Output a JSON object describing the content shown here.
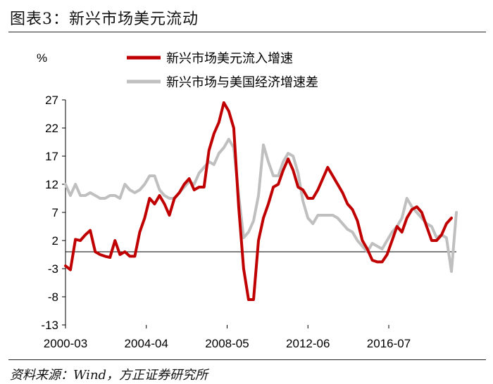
{
  "figure_title": "图表3：新兴市场美元流动",
  "source_note": "资料来源：Wind，方正证券研究所",
  "colors": {
    "red": "#c00000",
    "gray": "#bfbfbf",
    "axis": "#000000"
  },
  "chart_data": {
    "type": "line",
    "ylabel": "%",
    "ylim": [
      -13,
      27
    ],
    "yticks": [
      "27",
      "22",
      "17",
      "12",
      "7",
      "2",
      "-3",
      "-8",
      "-13"
    ],
    "xlim": [
      "2000-03",
      "2019-12"
    ],
    "xticks": [
      "2000-03",
      "2004-04",
      "2008-05",
      "2012-06",
      "2016-07"
    ],
    "legend_position": "top-center",
    "series": [
      {
        "name": "新兴市场美元流入增速",
        "color": "#c00000",
        "points": [
          [
            "2000-03",
            -2.5
          ],
          [
            "2000-06",
            -3.2
          ],
          [
            "2000-09",
            2.2
          ],
          [
            "2000-12",
            2.0
          ],
          [
            "2001-03",
            3.0
          ],
          [
            "2001-06",
            3.8
          ],
          [
            "2001-09",
            0.0
          ],
          [
            "2001-12",
            -0.5
          ],
          [
            "2002-03",
            -0.8
          ],
          [
            "2002-06",
            -1.0
          ],
          [
            "2002-09",
            2.0
          ],
          [
            "2002-12",
            -0.5
          ],
          [
            "2003-03",
            0.0
          ],
          [
            "2003-06",
            -0.8
          ],
          [
            "2003-09",
            -0.8
          ],
          [
            "2003-12",
            3.5
          ],
          [
            "2004-03",
            6.0
          ],
          [
            "2004-06",
            9.5
          ],
          [
            "2004-09",
            8.5
          ],
          [
            "2004-12",
            10.0
          ],
          [
            "2005-03",
            8.5
          ],
          [
            "2005-06",
            6.5
          ],
          [
            "2005-09",
            9.5
          ],
          [
            "2005-12",
            10.5
          ],
          [
            "2006-03",
            12.0
          ],
          [
            "2006-06",
            13.0
          ],
          [
            "2006-09",
            11.0
          ],
          [
            "2006-12",
            11.5
          ],
          [
            "2007-03",
            11.5
          ],
          [
            "2007-06",
            18.0
          ],
          [
            "2007-09",
            21.0
          ],
          [
            "2007-12",
            23.0
          ],
          [
            "2008-03",
            26.5
          ],
          [
            "2008-06",
            25.0
          ],
          [
            "2008-09",
            22.0
          ],
          [
            "2008-12",
            8.0
          ],
          [
            "2009-03",
            -3.0
          ],
          [
            "2009-06",
            -8.5
          ],
          [
            "2009-09",
            -8.5
          ],
          [
            "2009-12",
            2.0
          ],
          [
            "2010-03",
            6.0
          ],
          [
            "2010-06",
            8.5
          ],
          [
            "2010-09",
            11.5
          ],
          [
            "2010-12",
            12.0
          ],
          [
            "2011-03",
            14.5
          ],
          [
            "2011-06",
            16.5
          ],
          [
            "2011-09",
            14.5
          ],
          [
            "2011-12",
            11.5
          ],
          [
            "2012-03",
            11.0
          ],
          [
            "2012-06",
            9.5
          ],
          [
            "2012-09",
            9.5
          ],
          [
            "2012-12",
            11.0
          ],
          [
            "2013-03",
            13.0
          ],
          [
            "2013-06",
            15.0
          ],
          [
            "2013-09",
            13.5
          ],
          [
            "2013-12",
            12.0
          ],
          [
            "2014-03",
            10.5
          ],
          [
            "2014-06",
            8.5
          ],
          [
            "2014-09",
            7.5
          ],
          [
            "2014-12",
            5.5
          ],
          [
            "2015-03",
            2.0
          ],
          [
            "2015-06",
            0.5
          ],
          [
            "2015-09",
            -1.5
          ],
          [
            "2015-12",
            -1.8
          ],
          [
            "2016-03",
            -1.8
          ],
          [
            "2016-06",
            -0.5
          ],
          [
            "2016-09",
            2.0
          ],
          [
            "2016-12",
            4.5
          ],
          [
            "2017-03",
            3.5
          ],
          [
            "2017-06",
            6.0
          ],
          [
            "2017-09",
            7.5
          ],
          [
            "2017-12",
            8.0
          ],
          [
            "2018-03",
            7.0
          ],
          [
            "2018-06",
            4.5
          ],
          [
            "2018-09",
            2.0
          ],
          [
            "2018-12",
            2.0
          ],
          [
            "2019-03",
            3.0
          ],
          [
            "2019-06",
            5.0
          ],
          [
            "2019-09",
            6.0
          ]
        ]
      },
      {
        "name": "新兴市场与美国经济增速差",
        "color": "#bfbfbf",
        "points": [
          [
            "2000-03",
            12.0
          ],
          [
            "2000-06",
            10.0
          ],
          [
            "2000-09",
            12.0
          ],
          [
            "2000-12",
            10.0
          ],
          [
            "2001-03",
            10.0
          ],
          [
            "2001-06",
            10.5
          ],
          [
            "2001-09",
            10.0
          ],
          [
            "2001-12",
            9.5
          ],
          [
            "2002-03",
            9.5
          ],
          [
            "2002-06",
            10.0
          ],
          [
            "2002-09",
            10.0
          ],
          [
            "2002-12",
            9.5
          ],
          [
            "2003-03",
            12.0
          ],
          [
            "2003-06",
            11.0
          ],
          [
            "2003-09",
            10.5
          ],
          [
            "2003-12",
            11.0
          ],
          [
            "2004-03",
            12.0
          ],
          [
            "2004-06",
            13.5
          ],
          [
            "2004-09",
            13.5
          ],
          [
            "2004-12",
            11.0
          ],
          [
            "2005-03",
            10.0
          ],
          [
            "2005-06",
            9.5
          ],
          [
            "2005-09",
            9.5
          ],
          [
            "2005-12",
            10.5
          ],
          [
            "2006-03",
            11.5
          ],
          [
            "2006-06",
            12.5
          ],
          [
            "2006-09",
            12.0
          ],
          [
            "2006-12",
            14.0
          ],
          [
            "2007-03",
            15.0
          ],
          [
            "2007-06",
            16.0
          ],
          [
            "2007-09",
            15.5
          ],
          [
            "2007-12",
            17.5
          ],
          [
            "2008-03",
            18.5
          ],
          [
            "2008-06",
            20.0
          ],
          [
            "2008-09",
            18.5
          ],
          [
            "2008-12",
            10.0
          ],
          [
            "2009-03",
            2.5
          ],
          [
            "2009-06",
            3.5
          ],
          [
            "2009-09",
            5.5
          ],
          [
            "2009-12",
            10.0
          ],
          [
            "2010-03",
            19.0
          ],
          [
            "2010-06",
            16.0
          ],
          [
            "2010-09",
            13.5
          ],
          [
            "2010-12",
            13.5
          ],
          [
            "2011-03",
            16.0
          ],
          [
            "2011-06",
            17.5
          ],
          [
            "2011-09",
            17.0
          ],
          [
            "2011-12",
            14.0
          ],
          [
            "2012-03",
            9.0
          ],
          [
            "2012-06",
            6.0
          ],
          [
            "2012-09",
            5.0
          ],
          [
            "2012-12",
            6.5
          ],
          [
            "2013-03",
            6.5
          ],
          [
            "2013-06",
            6.5
          ],
          [
            "2013-09",
            6.5
          ],
          [
            "2013-12",
            6.0
          ],
          [
            "2014-03",
            5.0
          ],
          [
            "2014-06",
            4.0
          ],
          [
            "2014-09",
            3.5
          ],
          [
            "2014-12",
            2.0
          ],
          [
            "2015-03",
            1.0
          ],
          [
            "2015-06",
            0.0
          ],
          [
            "2015-09",
            1.5
          ],
          [
            "2015-12",
            1.0
          ],
          [
            "2016-03",
            0.5
          ],
          [
            "2016-06",
            2.0
          ],
          [
            "2016-09",
            3.5
          ],
          [
            "2016-12",
            4.5
          ],
          [
            "2017-03",
            6.0
          ],
          [
            "2017-06",
            9.5
          ],
          [
            "2017-09",
            8.0
          ],
          [
            "2017-12",
            7.0
          ],
          [
            "2018-03",
            6.0
          ],
          [
            "2018-06",
            5.0
          ],
          [
            "2018-09",
            4.5
          ],
          [
            "2018-12",
            2.5
          ],
          [
            "2019-03",
            3.0
          ],
          [
            "2019-06",
            2.5
          ],
          [
            "2019-09",
            -3.5
          ],
          [
            "2019-12",
            7.0
          ]
        ]
      }
    ]
  }
}
